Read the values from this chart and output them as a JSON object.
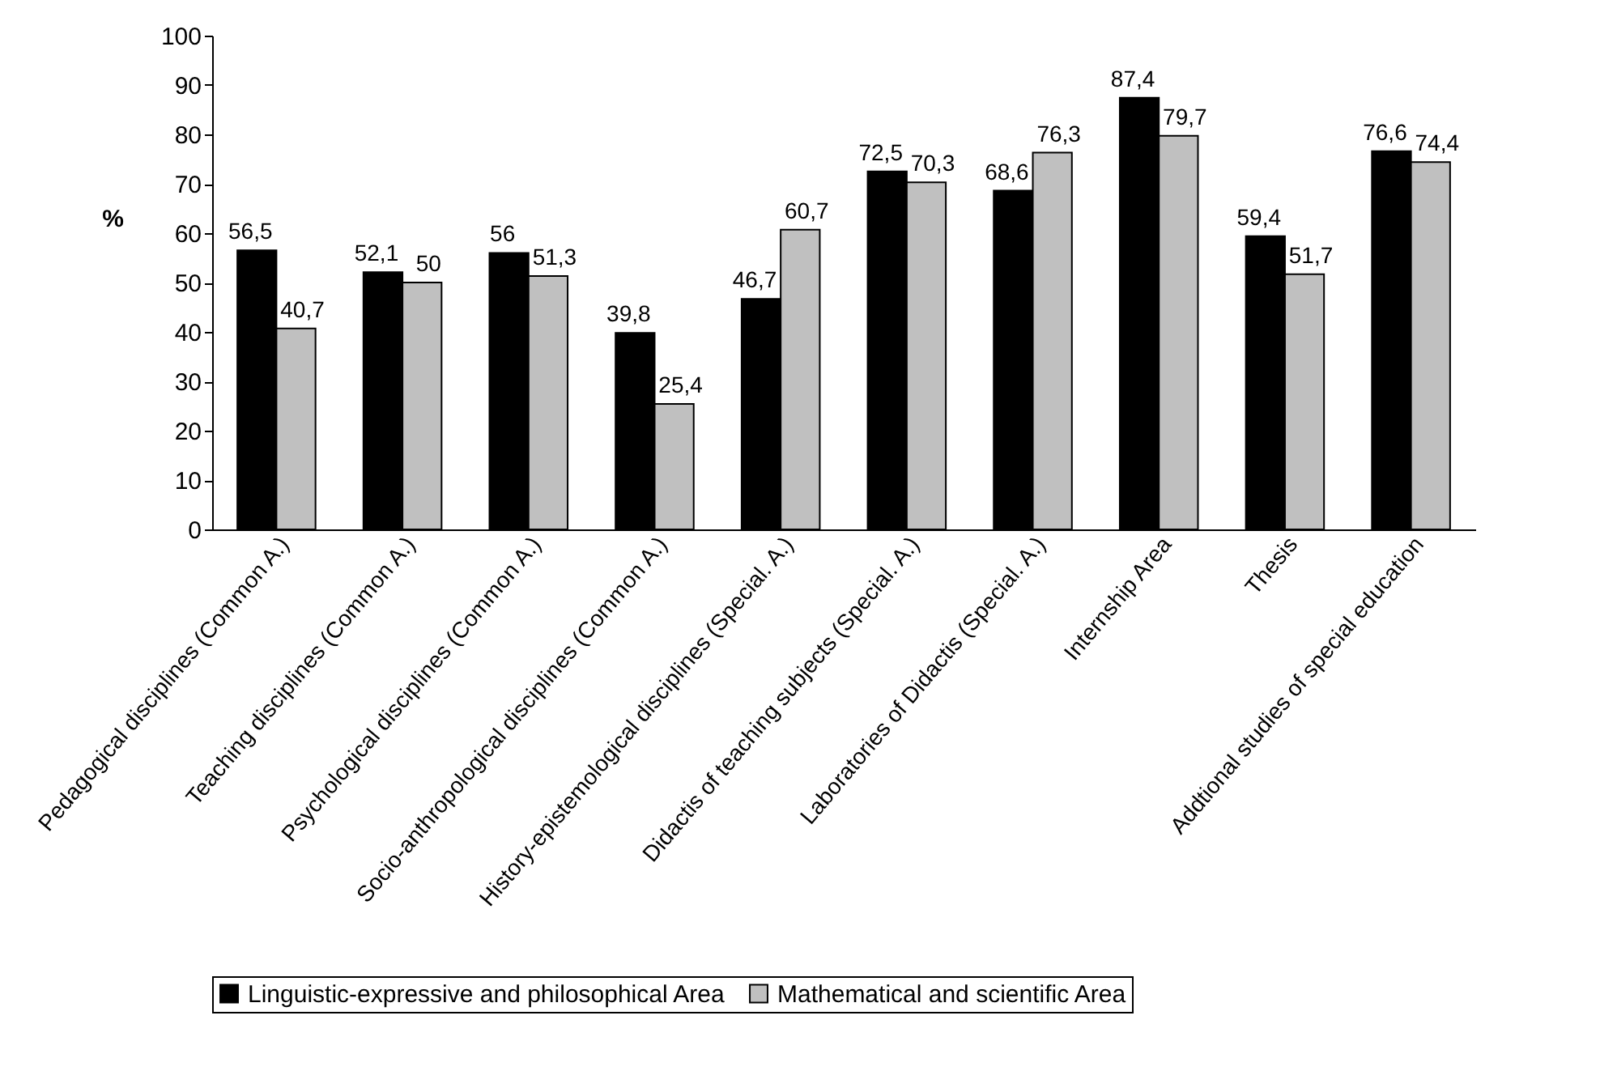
{
  "chart_data": {
    "type": "bar",
    "ylabel": "%",
    "categories": [
      "Pedagogical disciplines (Common A.)",
      "Teaching disciplines (Common A.)",
      "Psychological disciplines (Common A.)",
      "Socio-anthropological disciplines (Common A.)",
      "History-epistemological disciplines (Special. A.)",
      "Didactis of teaching subjects (Special. A.)",
      "Laboratories of Didactis (Special. A.)",
      "Internship Area",
      "Thesis",
      "Addtional studies of special education"
    ],
    "series": [
      {
        "name": "Linguistic-expressive and philosophical Area",
        "color": "#000000",
        "values": [
          56.5,
          52.1,
          56,
          39.8,
          46.7,
          72.5,
          68.6,
          87.4,
          59.4,
          76.6
        ],
        "value_labels": [
          "56,5",
          "52,1",
          "56",
          "39,8",
          "46,7",
          "72,5",
          "68,6",
          "87,4",
          "59,4",
          "76,6"
        ]
      },
      {
        "name": "Mathematical and scientific Area",
        "color": "#c0c0c0",
        "values": [
          40.7,
          50,
          51.3,
          25.4,
          60.7,
          70.3,
          76.3,
          79.7,
          51.7,
          74.4
        ],
        "value_labels": [
          "40,7",
          "50",
          "51,3",
          "25,4",
          "60,7",
          "70,3",
          "76,3",
          "79,7",
          "51,7",
          "74,4"
        ]
      }
    ],
    "ylim": [
      0,
      100
    ],
    "yticks": [
      0,
      10,
      20,
      30,
      40,
      50,
      60,
      70,
      80,
      90,
      100
    ],
    "grid": false,
    "legend": "bottom"
  }
}
